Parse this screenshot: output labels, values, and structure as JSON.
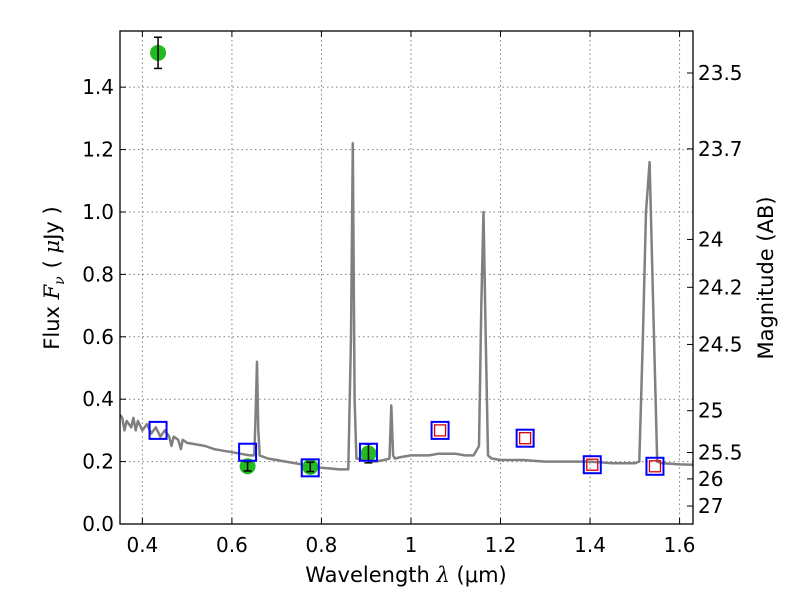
{
  "chart_data": {
    "type": "line",
    "xlabel": "Wavelength  λ (μm)",
    "xlabel_parts": {
      "text": "Wavelength ",
      "symbol": "λ",
      "unit": "(μm)"
    },
    "ylabel": "Flux  Fν ( μJy )",
    "ylabel_parts": {
      "text": "Flux ",
      "symbol": "F",
      "subscript": "ν",
      "unit_open": "( ",
      "unit_mu": "μ",
      "unit_rest": "Jy )"
    },
    "y2label": "Magnitude (AB)",
    "xlim": [
      0.35,
      1.63
    ],
    "ylim": [
      0.0,
      1.58
    ],
    "xticks": [
      0.4,
      0.6,
      0.8,
      1.0,
      1.2,
      1.4,
      1.6
    ],
    "xtick_labels": [
      "0.4",
      "0.6",
      "0.8",
      "1",
      "1.2",
      "1.4",
      "1.6"
    ],
    "yticks": [
      0.0,
      0.2,
      0.4,
      0.6,
      0.8,
      1.0,
      1.2,
      1.4
    ],
    "ytick_labels": [
      "0.0",
      "0.2",
      "0.4",
      "0.6",
      "0.8",
      "1.0",
      "1.2",
      "1.4"
    ],
    "y2ticks": [
      {
        "label": "23.5",
        "mag": 23.5
      },
      {
        "label": "23.7",
        "mag": 23.7
      },
      {
        "label": "24",
        "mag": 24.0
      },
      {
        "label": "24.2",
        "mag": 24.2
      },
      {
        "label": "24.5",
        "mag": 24.5
      },
      {
        "label": "25",
        "mag": 25.0
      },
      {
        "label": "25.5",
        "mag": 25.5
      },
      {
        "label": "26",
        "mag": 26.0
      },
      {
        "label": "27",
        "mag": 27.0
      }
    ],
    "grid": true,
    "colors": {
      "model": "#808080",
      "observed": "#22bb22",
      "errorbar": "#000000",
      "model_box": "#0000ff",
      "inner_box": "#dd0000"
    },
    "series": [
      {
        "kind": "model_spectrum",
        "x": [
          0.35,
          0.355,
          0.36,
          0.365,
          0.37,
          0.375,
          0.38,
          0.385,
          0.39,
          0.4,
          0.41,
          0.42,
          0.43,
          0.44,
          0.45,
          0.46,
          0.465,
          0.47,
          0.48,
          0.486,
          0.49,
          0.5,
          0.52,
          0.54,
          0.56,
          0.58,
          0.6,
          0.62,
          0.64,
          0.65,
          0.653,
          0.656,
          0.659,
          0.662,
          0.68,
          0.7,
          0.72,
          0.74,
          0.76,
          0.78,
          0.8,
          0.82,
          0.84,
          0.86,
          0.866,
          0.87,
          0.874,
          0.878,
          0.9,
          0.92,
          0.94,
          0.952,
          0.956,
          0.96,
          0.964,
          0.98,
          1.0,
          1.02,
          1.04,
          1.06,
          1.08,
          1.1,
          1.12,
          1.14,
          1.152,
          1.157,
          1.162,
          1.167,
          1.172,
          1.18,
          1.2,
          1.25,
          1.3,
          1.35,
          1.4,
          1.45,
          1.5,
          1.51,
          1.518,
          1.525,
          1.533,
          1.541,
          1.55,
          1.56,
          1.58,
          1.6,
          1.63
        ],
        "y": [
          0.35,
          0.34,
          0.3,
          0.33,
          0.32,
          0.31,
          0.34,
          0.3,
          0.33,
          0.3,
          0.32,
          0.29,
          0.31,
          0.28,
          0.3,
          0.28,
          0.25,
          0.28,
          0.27,
          0.24,
          0.27,
          0.26,
          0.255,
          0.25,
          0.24,
          0.235,
          0.23,
          0.225,
          0.22,
          0.22,
          0.35,
          0.52,
          0.3,
          0.22,
          0.21,
          0.205,
          0.2,
          0.195,
          0.19,
          0.185,
          0.18,
          0.178,
          0.175,
          0.175,
          0.6,
          1.22,
          0.4,
          0.21,
          0.205,
          0.2,
          0.205,
          0.21,
          0.38,
          0.22,
          0.21,
          0.215,
          0.22,
          0.22,
          0.22,
          0.225,
          0.225,
          0.225,
          0.22,
          0.22,
          0.25,
          0.7,
          1.0,
          0.6,
          0.22,
          0.21,
          0.205,
          0.205,
          0.2,
          0.2,
          0.2,
          0.195,
          0.195,
          0.2,
          0.6,
          1.0,
          1.16,
          0.7,
          0.2,
          0.195,
          0.193,
          0.191,
          0.19
        ]
      },
      {
        "kind": "observed",
        "x": [
          0.435,
          0.635,
          0.775,
          0.905
        ],
        "y": [
          1.51,
          0.185,
          0.183,
          0.226
        ],
        "yerr": [
          0.05,
          0.015,
          0.015,
          0.03
        ]
      },
      {
        "kind": "model_bands",
        "x": [
          0.435,
          0.635,
          0.775,
          0.905,
          1.065,
          1.255,
          1.405,
          1.545
        ],
        "y": [
          0.3,
          0.23,
          0.18,
          0.23,
          0.3,
          0.275,
          0.19,
          0.185
        ],
        "inner": [
          false,
          false,
          false,
          false,
          true,
          true,
          true,
          true
        ]
      }
    ]
  }
}
